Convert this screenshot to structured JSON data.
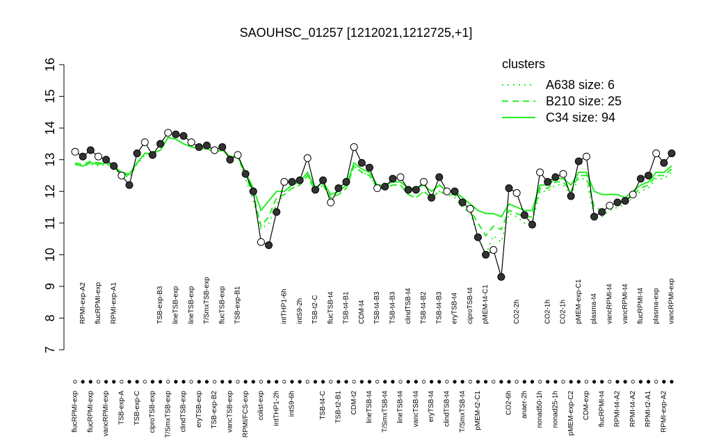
{
  "chart_data": {
    "type": "line",
    "title": "SAOUHSC_01257 [1212021,1212725,+1]",
    "ylim": [
      7,
      16
    ],
    "yticks": [
      7,
      8,
      9,
      10,
      11,
      12,
      13,
      14,
      15,
      16
    ],
    "legend_title": "clusters",
    "legend_position": "top-right",
    "point_color": "#000000",
    "categories": [
      "flucRPMI-exp",
      "RPMI-exp-A2",
      "flucRPMI-exp",
      "flucRPMI-exp",
      "vancRPMI-exp",
      "RPMI-exp-A1",
      "TSB-exp-A",
      null,
      "TSB-exp-C",
      null,
      "ciproTSB-exp",
      "TSB-exp-B3",
      "T/SmxTSB-exp",
      "lineTSB-exp",
      "clindTSB-exp",
      "lineTSB-exp",
      "eryTSB-exp",
      "T/SmxTSB-exp",
      "TSB-exp-B2",
      "flucTSB-exp",
      "vancTSB-exp",
      "TSB-exp-B1",
      "RPMI/FCS-exp",
      null,
      "colist-exp",
      null,
      "intTHP1-2h",
      "intTHP1-6h",
      "intS9-6h",
      "intS9-2h",
      null,
      "TSB-t2-C",
      "TSB-t4-C",
      "flucTSB-t4",
      "TSB-t2-B1",
      "TSB-t4-B1",
      "CDM-t2",
      "CDM-t4",
      "lineTSB-t4",
      "TSB-t4-B3",
      "T/SmxTSB-t4",
      "TSB-t4-B3",
      "lineTSB-t4",
      "clindTSB-t4",
      "vancTSB-t4",
      "TSB-t4-B2",
      "eryTSB-t4",
      "TSB-t4-B3",
      "clindTSB-t4",
      "eryTSB-t4",
      "T/SmxTSB-t4",
      "ciproTSB-t4",
      "pMEM-t2-C1",
      "pMEM-t4-C1",
      null,
      null,
      "CO2-6h",
      "CO2-2h",
      "anaer-2h",
      null,
      "nonad50-1h",
      "CO2-1h",
      "nonad25-1h",
      "CO2-1h",
      "pMEM-exp-C2",
      "pMEM-exp-C1",
      "CDM-exp",
      "plasma-t4",
      "flucRPMI-t4",
      "vancRPMI-t4",
      "RPMI-t4-A2",
      "vancRPMI-t4",
      "RPMI-t4-A2",
      "flucRPMI-t4",
      "RPMI-t2-A1",
      "plasma-exp",
      "RPMI-exp-A2",
      "vancRPMI-exp"
    ],
    "values": [
      13.25,
      13.1,
      13.3,
      13.1,
      13.0,
      12.8,
      12.5,
      12.2,
      13.2,
      13.55,
      13.15,
      13.5,
      13.85,
      13.8,
      13.75,
      13.55,
      13.4,
      13.45,
      13.3,
      13.4,
      13.0,
      13.15,
      12.55,
      12.0,
      10.4,
      10.3,
      11.35,
      12.3,
      12.3,
      12.35,
      13.05,
      12.05,
      12.35,
      11.65,
      12.1,
      12.3,
      13.4,
      12.9,
      12.75,
      12.1,
      12.15,
      12.4,
      12.45,
      12.05,
      12.05,
      12.3,
      11.8,
      12.45,
      12.0,
      12.0,
      11.65,
      11.45,
      10.55,
      10.0,
      10.15,
      9.3,
      12.1,
      11.95,
      11.25,
      10.95,
      12.6,
      12.3,
      12.45,
      12.55,
      11.85,
      12.95,
      13.1,
      11.2,
      11.35,
      11.55,
      11.65,
      11.7,
      11.9,
      12.4,
      12.5,
      13.2,
      12.9,
      13.2
    ],
    "series": [
      {
        "name": "A638 size: 6",
        "color": "#22ee22",
        "dash": "dotted",
        "values": [
          12.85,
          12.8,
          12.85,
          12.8,
          12.85,
          12.75,
          12.5,
          12.45,
          12.85,
          13.15,
          13.2,
          13.3,
          13.7,
          13.65,
          13.5,
          13.4,
          13.35,
          13.35,
          13.25,
          13.3,
          13.1,
          13.1,
          12.4,
          11.7,
          10.8,
          11.0,
          11.6,
          11.9,
          12.1,
          12.2,
          12.5,
          12.0,
          12.2,
          11.8,
          11.9,
          12.1,
          12.8,
          12.6,
          12.5,
          12.1,
          12.1,
          12.2,
          12.2,
          11.9,
          11.8,
          12.0,
          11.8,
          12.0,
          11.9,
          11.8,
          11.5,
          11.3,
          10.6,
          10.0,
          10.6,
          10.4,
          11.3,
          11.2,
          11.0,
          11.0,
          12.0,
          12.0,
          12.2,
          12.2,
          11.9,
          12.4,
          12.4,
          11.2,
          11.2,
          11.4,
          11.5,
          11.6,
          11.8,
          12.0,
          12.1,
          12.4,
          12.4,
          12.6
        ]
      },
      {
        "name": "B210 size: 25",
        "color": "#22ee22",
        "dash": "dashed",
        "values": [
          12.9,
          12.85,
          12.95,
          12.9,
          12.9,
          12.8,
          12.55,
          12.5,
          12.9,
          13.2,
          13.2,
          13.3,
          13.7,
          13.65,
          13.5,
          13.4,
          13.35,
          13.35,
          13.25,
          13.3,
          13.1,
          13.1,
          12.5,
          11.9,
          10.9,
          11.2,
          11.8,
          11.9,
          12.1,
          12.2,
          12.5,
          12.0,
          12.2,
          11.8,
          11.9,
          12.1,
          12.8,
          12.6,
          12.5,
          12.1,
          12.1,
          12.2,
          12.2,
          11.9,
          11.8,
          12.0,
          11.8,
          12.0,
          11.9,
          11.9,
          11.6,
          11.4,
          11.0,
          10.6,
          10.9,
          10.8,
          11.4,
          11.3,
          11.2,
          11.2,
          12.1,
          12.1,
          12.3,
          12.3,
          12.0,
          12.5,
          12.5,
          11.5,
          11.4,
          11.6,
          11.6,
          11.7,
          11.9,
          12.1,
          12.2,
          12.5,
          12.5,
          12.7
        ]
      },
      {
        "name": "C34 size: 94",
        "color": "#22ee22",
        "dash": "solid",
        "values": [
          12.85,
          12.8,
          12.9,
          12.85,
          12.9,
          12.8,
          12.6,
          12.55,
          12.9,
          13.2,
          13.2,
          13.3,
          13.7,
          13.65,
          13.5,
          13.4,
          13.35,
          13.35,
          13.25,
          13.3,
          13.1,
          13.1,
          12.6,
          12.1,
          11.4,
          11.7,
          12.0,
          12.0,
          12.2,
          12.3,
          12.6,
          12.1,
          12.3,
          11.9,
          12.0,
          12.2,
          12.9,
          12.7,
          12.6,
          12.2,
          12.2,
          12.3,
          12.3,
          12.1,
          12.1,
          12.2,
          12.0,
          12.2,
          12.0,
          12.0,
          11.8,
          11.6,
          11.4,
          11.3,
          11.3,
          11.2,
          11.6,
          11.5,
          11.4,
          11.4,
          12.2,
          12.2,
          12.4,
          12.4,
          12.2,
          12.6,
          12.6,
          12.0,
          11.9,
          11.9,
          11.9,
          11.8,
          12.0,
          12.2,
          12.3,
          12.6,
          12.6,
          12.8
        ]
      }
    ]
  }
}
